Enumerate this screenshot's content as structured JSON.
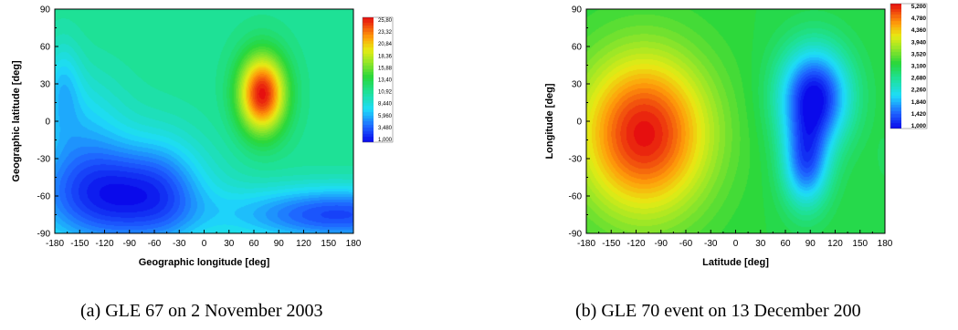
{
  "chart_data": [
    {
      "type": "heatmap",
      "caption": "(a) GLE 67 on 2 November 2003",
      "xlabel": "Geographic longitude [deg]",
      "ylabel": "Geographic latitude [deg]",
      "xlim": [
        -180,
        180
      ],
      "ylim": [
        -90,
        90
      ],
      "xticks": [
        "-180",
        "-150",
        "-120",
        "-90",
        "-60",
        "-30",
        "0",
        "30",
        "60",
        "90",
        "120",
        "150",
        "180"
      ],
      "yticks": [
        "90",
        "60",
        "30",
        "0",
        "-30",
        "-60",
        "-90"
      ],
      "colorbar_labels": [
        "25,80",
        "23,32",
        "20,84",
        "18,36",
        "15,88",
        "13,40",
        "10,92",
        "8,440",
        "5,960",
        "3,480",
        "1,000"
      ],
      "vmin": 1.0,
      "vmax": 25.8,
      "base": 11,
      "features": [
        {
          "lon": 70,
          "lat": 22,
          "value": 25.8,
          "sx": 20,
          "sy": 22
        },
        {
          "lon": -110,
          "lat": -60,
          "value": 1.5,
          "sx": 70,
          "sy": 30
        },
        {
          "lon": 160,
          "lat": -75,
          "value": 3.0,
          "sx": 90,
          "sy": 16
        },
        {
          "lon": -150,
          "lat": 0,
          "value": 8.0,
          "sx": 40,
          "sy": 30
        },
        {
          "lon": -170,
          "lat": 30,
          "value": 8.0,
          "sx": 15,
          "sy": 25
        },
        {
          "lon": -45,
          "lat": -55,
          "value": 9.0,
          "sx": 30,
          "sy": 35
        }
      ]
    },
    {
      "type": "heatmap",
      "caption": "(b) GLE 70 event on 13 December 200",
      "xlabel": "Latitude [deg]",
      "ylabel": "Longitude [deg]",
      "xlim": [
        -180,
        180
      ],
      "ylim": [
        -90,
        90
      ],
      "xticks": [
        "-180",
        "-150",
        "-120",
        "-90",
        "-60",
        "-30",
        "0",
        "30",
        "60",
        "90",
        "120",
        "150",
        "180"
      ],
      "yticks": [
        "90",
        "60",
        "30",
        "0",
        "-30",
        "-60",
        "-90"
      ],
      "colorbar_labels": [
        "5,200",
        "4,780",
        "4,360",
        "3,940",
        "3,520",
        "3,100",
        "2,680",
        "2,260",
        "1,840",
        "1,420",
        "1,000"
      ],
      "vmin": 1.0,
      "vmax": 5.2,
      "base": 3.15,
      "features": [
        {
          "lon": -110,
          "lat": -10,
          "value": 5.2,
          "sx": 55,
          "sy": 45
        },
        {
          "lon": 95,
          "lat": 20,
          "value": 1.0,
          "sx": 30,
          "sy": 28
        },
        {
          "lon": 85,
          "lat": -35,
          "value": 1.6,
          "sx": 20,
          "sy": 25
        },
        {
          "lon": 180,
          "lat": -30,
          "value": 3.0,
          "sx": 8,
          "sy": 15
        }
      ]
    }
  ]
}
